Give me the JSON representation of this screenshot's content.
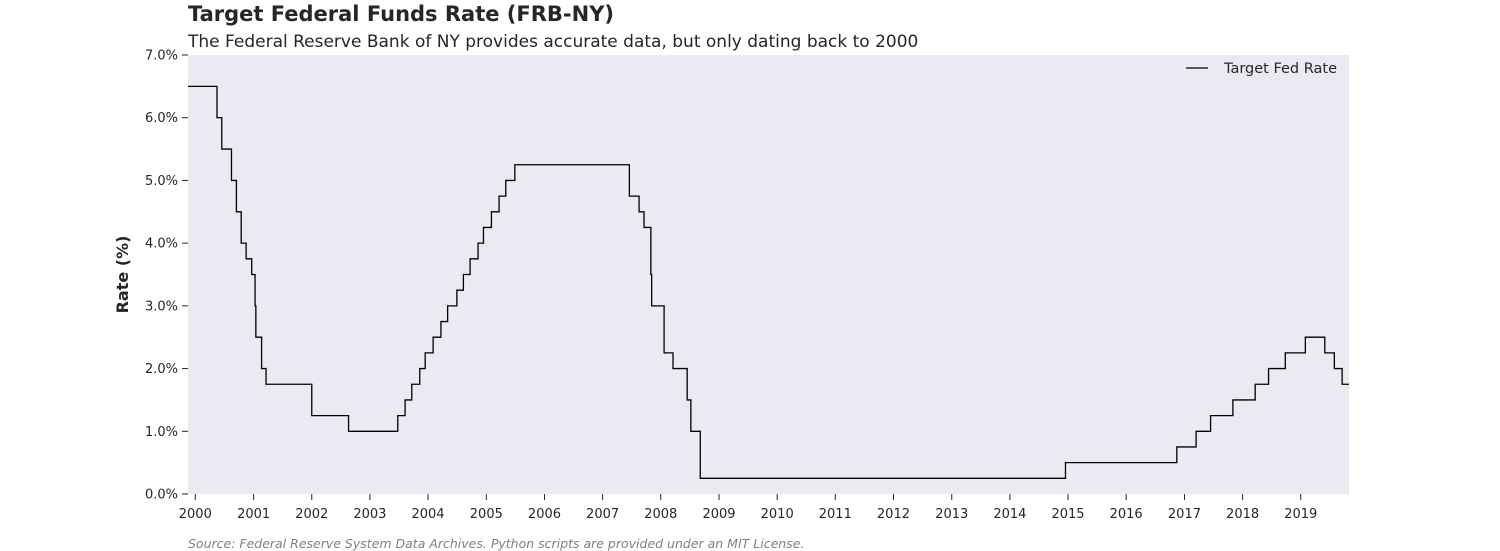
{
  "header": {
    "title": "Target Federal Funds Rate (FRB-NY)",
    "subtitle": "The Federal Reserve Bank of NY provides accurate data, but only dating back to 2000"
  },
  "footer": {
    "source": "Source: Federal Reserve System Data Archives. Python scripts are provided under an MIT License."
  },
  "colors": {
    "plot_background": "#eaeaf2",
    "line": "#000000",
    "text": "#262626"
  },
  "chart_data": {
    "type": "line",
    "step": "post",
    "title": "Target Federal Funds Rate (FRB-NY)",
    "subtitle": "The Federal Reserve Bank of NY provides accurate data, but only dating back to 2000",
    "xlabel": "",
    "ylabel": "Rate (%)",
    "xlim": [
      "1999-11-16",
      "2019-10-31"
    ],
    "ylim": [
      0,
      7
    ],
    "grid": false,
    "legend_position": "top-right",
    "x_ticks": [
      "2000",
      "2001",
      "2002",
      "2003",
      "2004",
      "2005",
      "2006",
      "2007",
      "2008",
      "2009",
      "2010",
      "2011",
      "2012",
      "2013",
      "2014",
      "2015",
      "2016",
      "2017",
      "2018",
      "2019"
    ],
    "y_ticks": [
      "0.0%",
      "1.0%",
      "2.0%",
      "3.0%",
      "4.0%",
      "5.0%",
      "6.0%",
      "7.0%"
    ],
    "series": [
      {
        "name": "Target Fed Rate",
        "color": "#000000",
        "points": [
          [
            "1999-11-16",
            6.5
          ],
          [
            "2000-05-16",
            6.0
          ],
          [
            "2000-06-15",
            5.5
          ],
          [
            "2000-08-15",
            5.0
          ],
          [
            "2000-09-15",
            4.5
          ],
          [
            "2000-10-15",
            4.0
          ],
          [
            "2000-11-15",
            3.75
          ],
          [
            "2000-12-20",
            3.5
          ],
          [
            "2001-01-10",
            3.0
          ],
          [
            "2001-01-15",
            2.5
          ],
          [
            "2001-02-20",
            2.0
          ],
          [
            "2001-03-20",
            1.75
          ],
          [
            "2002-01-01",
            1.25
          ],
          [
            "2002-08-20",
            1.0
          ],
          [
            "2003-06-25",
            1.25
          ],
          [
            "2003-08-10",
            1.5
          ],
          [
            "2003-09-21",
            1.75
          ],
          [
            "2003-11-10",
            2.0
          ],
          [
            "2003-12-14",
            2.25
          ],
          [
            "2004-02-02",
            2.5
          ],
          [
            "2004-03-22",
            2.75
          ],
          [
            "2004-05-03",
            3.0
          ],
          [
            "2004-06-30",
            3.25
          ],
          [
            "2004-08-10",
            3.5
          ],
          [
            "2004-09-21",
            3.75
          ],
          [
            "2004-11-10",
            4.0
          ],
          [
            "2004-12-14",
            4.25
          ],
          [
            "2005-02-02",
            4.5
          ],
          [
            "2005-03-22",
            4.75
          ],
          [
            "2005-05-03",
            5.0
          ],
          [
            "2005-06-29",
            5.25
          ],
          [
            "2007-06-18",
            4.75
          ],
          [
            "2007-08-18",
            4.5
          ],
          [
            "2007-09-18",
            4.25
          ],
          [
            "2007-10-31",
            3.5
          ],
          [
            "2007-11-05",
            3.0
          ],
          [
            "2008-01-22",
            2.25
          ],
          [
            "2008-03-18",
            2.0
          ],
          [
            "2008-06-15",
            1.5
          ],
          [
            "2008-07-08",
            1.0
          ],
          [
            "2008-09-05",
            0.25
          ],
          [
            "2014-12-16",
            0.5
          ],
          [
            "2016-11-14",
            0.75
          ],
          [
            "2017-03-15",
            1.0
          ],
          [
            "2017-06-14",
            1.25
          ],
          [
            "2017-11-01",
            1.5
          ],
          [
            "2018-03-21",
            1.75
          ],
          [
            "2018-06-13",
            2.0
          ],
          [
            "2018-09-26",
            2.25
          ],
          [
            "2019-01-30",
            2.5
          ],
          [
            "2019-06-01",
            2.25
          ],
          [
            "2019-07-31",
            2.0
          ],
          [
            "2019-09-18",
            1.75
          ],
          [
            "2019-10-31",
            1.75
          ]
        ]
      }
    ]
  }
}
